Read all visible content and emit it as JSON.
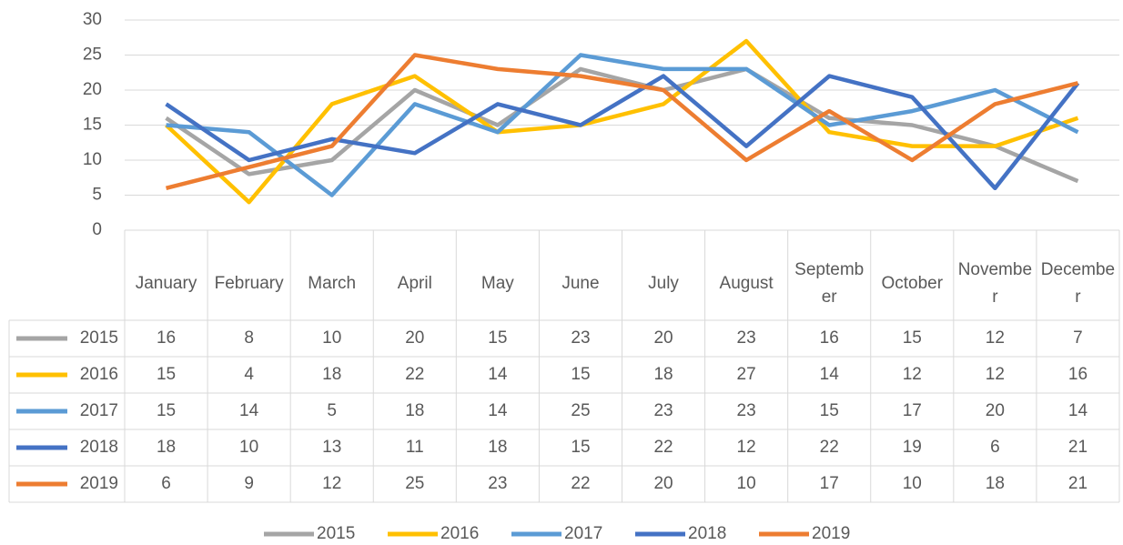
{
  "chart_data": {
    "type": "line",
    "categories": [
      "January",
      "February",
      "March",
      "April",
      "May",
      "June",
      "July",
      "August",
      "September",
      "October",
      "November",
      "December"
    ],
    "series": [
      {
        "name": "2015",
        "color": "#a5a5a5",
        "values": [
          16,
          8,
          10,
          20,
          15,
          23,
          20,
          23,
          16,
          15,
          12,
          7
        ]
      },
      {
        "name": "2016",
        "color": "#ffc000",
        "values": [
          15,
          4,
          18,
          22,
          14,
          15,
          18,
          27,
          14,
          12,
          12,
          16
        ]
      },
      {
        "name": "2017",
        "color": "#5b9bd5",
        "values": [
          15,
          14,
          5,
          18,
          14,
          25,
          23,
          23,
          15,
          17,
          20,
          14
        ]
      },
      {
        "name": "2018",
        "color": "#4472c4",
        "values": [
          18,
          10,
          13,
          11,
          18,
          15,
          22,
          12,
          22,
          19,
          6,
          21
        ]
      },
      {
        "name": "2019",
        "color": "#ed7d31",
        "values": [
          6,
          9,
          12,
          25,
          23,
          22,
          20,
          10,
          17,
          10,
          18,
          21
        ]
      }
    ],
    "ylim": [
      0,
      30
    ],
    "yticks": [
      0,
      5,
      10,
      15,
      20,
      25,
      30
    ],
    "grid": true,
    "legend": "bottom"
  }
}
